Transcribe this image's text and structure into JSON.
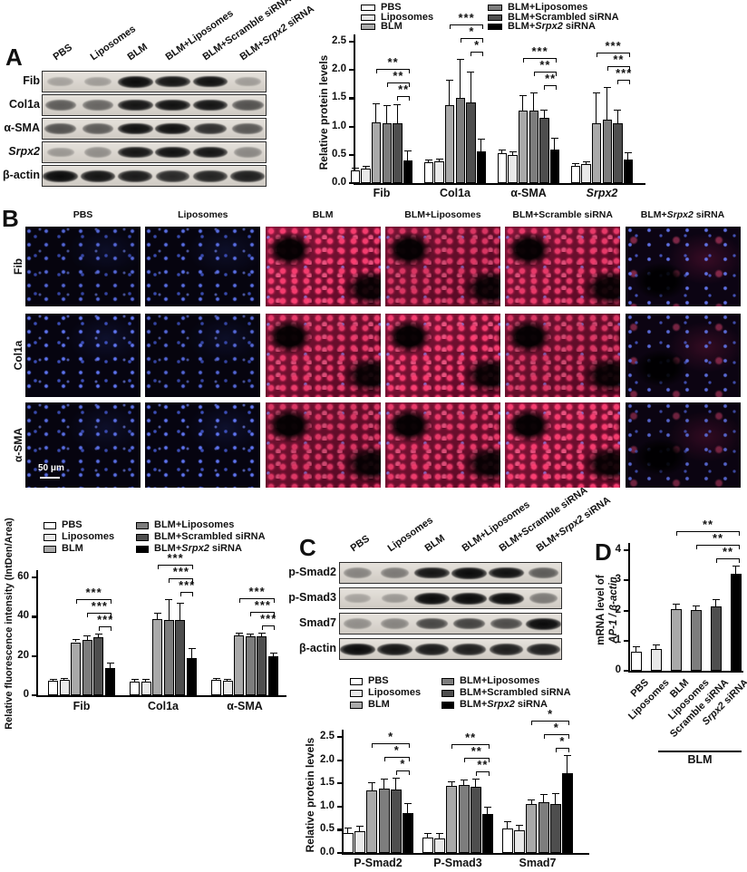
{
  "figure": {
    "panels": {
      "a": "A",
      "b": "B",
      "c": "C",
      "d": "D"
    },
    "scale_bar": "50 μm",
    "blm_bracket_label": "BLM"
  },
  "series_colors": [
    "#ffffff",
    "#e9e9e9",
    "#a9a9a9",
    "#7d7d7d",
    "#4e4e4e",
    "#000000"
  ],
  "treatment_groups": [
    "PBS",
    "Liposomes",
    "BLM",
    "BLM+Liposomes",
    "BLM+Scrambled siRNA",
    "BLM+Srpx2 siRNA"
  ],
  "panelA_blot": {
    "lane_labels": [
      "PBS",
      "Liposomes",
      "BLM",
      "BLM+Liposomes",
      "BLM+Scramble siRNA",
      "BLM+Srpx2 siRNA"
    ],
    "rows": [
      {
        "label": "Fib",
        "band_intensities": [
          0.25,
          0.28,
          1,
          0.95,
          0.97,
          0.28
        ]
      },
      {
        "label": "Col1a",
        "band_intensities": [
          0.6,
          0.55,
          0.95,
          0.97,
          0.95,
          0.65
        ]
      },
      {
        "label": "α-SMA",
        "band_intensities": [
          0.65,
          0.6,
          0.97,
          0.97,
          0.82,
          0.62
        ]
      },
      {
        "label": "Srpx2",
        "band_intensities": [
          0.3,
          0.35,
          0.95,
          0.97,
          0.95,
          0.38
        ]
      },
      {
        "label": "β-actin",
        "band_intensities": [
          1,
          0.95,
          0.92,
          0.85,
          0.88,
          0.9
        ]
      }
    ]
  },
  "panelB": {
    "column_labels": [
      "PBS",
      "Liposomes",
      "BLM",
      "BLM+Liposomes",
      "BLM+Scramble siRNA",
      "BLM+Srpx2 siRNA"
    ],
    "row_labels": [
      "Fib",
      "Col1a",
      "α-SMA"
    ],
    "column_appearance": [
      "blue-nuclei",
      "blue-nuclei",
      "red-fibrosis",
      "red-fibrosis",
      "red-fibrosis",
      "mixed-reduced"
    ]
  },
  "panelC_blot": {
    "lane_labels": [
      "PBS",
      "Liposomes",
      "BLM",
      "BLM+Liposomes",
      "BLM+Scramble siRNA",
      "BLM+Srpx2 siRNA"
    ],
    "rows": [
      {
        "label": "p-Smad2",
        "band_intensities": [
          0.4,
          0.45,
          0.95,
          1,
          0.97,
          0.6
        ]
      },
      {
        "label": "p-Smad3",
        "band_intensities": [
          0.25,
          0.3,
          1,
          1,
          1,
          0.45
        ]
      },
      {
        "label": "Smad7",
        "band_intensities": [
          0.35,
          0.4,
          0.7,
          0.72,
          0.68,
          1
        ]
      },
      {
        "label": "β-actin",
        "band_intensities": [
          1,
          0.95,
          0.92,
          0.9,
          0.9,
          0.9
        ]
      }
    ]
  },
  "chart_data": [
    {
      "id": "panelA_chart",
      "type": "bar",
      "ylabel": "Relative protein levels",
      "ylim": [
        0,
        2.5
      ],
      "yticks": [
        0,
        0.5,
        1,
        1.5,
        2,
        2.5
      ],
      "ytick_labels": [
        "0.0",
        "0.5",
        "1.0",
        "1.5",
        "2.0",
        "2.5"
      ],
      "categories": [
        "Fib",
        "Col1a",
        "α-SMA",
        "Srpx2"
      ],
      "legend": [
        "PBS",
        "Liposomes",
        "BLM",
        "BLM+Liposomes",
        "BLM+Scrambled siRNA",
        "BLM+Srpx2 siRNA"
      ],
      "legend_position": "top",
      "series": [
        {
          "name": "PBS",
          "values": [
            0.23,
            0.37,
            0.53,
            0.3
          ],
          "errors": [
            0.05,
            0.05,
            0.07,
            0.06
          ]
        },
        {
          "name": "Liposomes",
          "values": [
            0.26,
            0.38,
            0.5,
            0.34
          ],
          "errors": [
            0.05,
            0.05,
            0.06,
            0.05
          ]
        },
        {
          "name": "BLM",
          "values": [
            1.08,
            1.38,
            1.28,
            1.05
          ],
          "errors": [
            0.33,
            0.45,
            0.28,
            0.55
          ]
        },
        {
          "name": "BLM+Liposomes",
          "values": [
            1.05,
            1.5,
            1.28,
            1.12
          ],
          "errors": [
            0.33,
            0.7,
            0.33,
            0.58
          ]
        },
        {
          "name": "BLM+Scrambled siRNA",
          "values": [
            1.05,
            1.42,
            1.15,
            1.05
          ],
          "errors": [
            0.35,
            0.55,
            0.15,
            0.25
          ]
        },
        {
          "name": "BLM+Srpx2 siRNA",
          "values": [
            0.4,
            0.56,
            0.6,
            0.42
          ],
          "errors": [
            0.17,
            0.22,
            0.2,
            0.12
          ]
        }
      ],
      "significance": [
        {
          "category": "Fib",
          "brackets": [
            {
              "from": 2,
              "to": 5,
              "label": "**"
            },
            {
              "from": 3,
              "to": 5,
              "label": "**"
            },
            {
              "from": 4,
              "to": 5,
              "label": "**"
            }
          ]
        },
        {
          "category": "Col1a",
          "brackets": [
            {
              "from": 2,
              "to": 5,
              "label": "***"
            },
            {
              "from": 3,
              "to": 5,
              "label": "*"
            },
            {
              "from": 4,
              "to": 5,
              "label": "*"
            }
          ]
        },
        {
          "category": "α-SMA",
          "brackets": [
            {
              "from": 2,
              "to": 5,
              "label": "***"
            },
            {
              "from": 3,
              "to": 5,
              "label": "**"
            },
            {
              "from": 4,
              "to": 5,
              "label": "**"
            }
          ]
        },
        {
          "category": "Srpx2",
          "brackets": [
            {
              "from": 2,
              "to": 5,
              "label": "***"
            },
            {
              "from": 3,
              "to": 5,
              "label": "**"
            },
            {
              "from": 4,
              "to": 5,
              "label": "***"
            }
          ]
        }
      ]
    },
    {
      "id": "panelB_chart",
      "type": "bar",
      "ylabel": "Relative fluorescence intensity (IntDen/Area)",
      "ylim": [
        0,
        60
      ],
      "yticks": [
        0,
        20,
        40,
        60
      ],
      "ytick_labels": [
        "0",
        "20",
        "40",
        "60"
      ],
      "categories": [
        "Fib",
        "Col1a",
        "α-SMA"
      ],
      "legend": [
        "PBS",
        "Liposomes",
        "BLM",
        "BLM+Liposomes",
        "BLM+Scrambled siRNA",
        "BLM+Srpx2 siRNA"
      ],
      "legend_position": "top",
      "series": [
        {
          "name": "PBS",
          "values": [
            7.4,
            7.1,
            7.9
          ],
          "errors": [
            1.0,
            1.2,
            1.0
          ]
        },
        {
          "name": "Liposomes",
          "values": [
            7.9,
            7.0,
            7.5
          ],
          "errors": [
            0.9,
            1.2,
            1.0
          ]
        },
        {
          "name": "BLM",
          "values": [
            27.0,
            38.6,
            30.5
          ],
          "errors": [
            1.6,
            3.5,
            1.5
          ]
        },
        {
          "name": "BLM+Liposomes",
          "values": [
            28.3,
            38.5,
            29.8
          ],
          "errors": [
            2.2,
            10.5,
            1.8
          ]
        },
        {
          "name": "BLM+Scrambled siRNA",
          "values": [
            29.5,
            38.5,
            29.8
          ],
          "errors": [
            2.0,
            8.5,
            2.0
          ]
        },
        {
          "name": "BLM+Srpx2 siRNA",
          "values": [
            13.8,
            19.0,
            19.8
          ],
          "errors": [
            3.0,
            5.0,
            1.8
          ]
        }
      ],
      "significance": [
        {
          "category": "Fib",
          "brackets": [
            {
              "from": 2,
              "to": 5,
              "label": "***"
            },
            {
              "from": 3,
              "to": 5,
              "label": "***"
            },
            {
              "from": 4,
              "to": 5,
              "label": "***"
            }
          ]
        },
        {
          "category": "Col1a",
          "brackets": [
            {
              "from": 2,
              "to": 5,
              "label": "***"
            },
            {
              "from": 3,
              "to": 5,
              "label": "***"
            },
            {
              "from": 4,
              "to": 5,
              "label": "***"
            }
          ]
        },
        {
          "category": "α-SMA",
          "brackets": [
            {
              "from": 2,
              "to": 5,
              "label": "***"
            },
            {
              "from": 3,
              "to": 5,
              "label": "***"
            },
            {
              "from": 4,
              "to": 5,
              "label": "***"
            }
          ]
        }
      ]
    },
    {
      "id": "panelC_chart",
      "type": "bar",
      "ylabel": "Relative protein levels",
      "ylim": [
        0,
        2.5
      ],
      "yticks": [
        0,
        0.5,
        1,
        1.5,
        2,
        2.5
      ],
      "ytick_labels": [
        "0.0",
        "0.5",
        "1.0",
        "1.5",
        "2.0",
        "2.5"
      ],
      "categories": [
        "P-Smad2",
        "P-Smad3",
        "Smad7"
      ],
      "legend": [
        "PBS",
        "Liposomes",
        "BLM",
        "BLM+Liposomes",
        "BLM+Scrambled siRNA",
        "BLM+Srpx2 siRNA"
      ],
      "legend_position": "top",
      "series": [
        {
          "name": "PBS",
          "values": [
            0.43,
            0.34,
            0.53
          ],
          "errors": [
            0.12,
            0.08,
            0.15
          ]
        },
        {
          "name": "Liposomes",
          "values": [
            0.46,
            0.32,
            0.48
          ],
          "errors": [
            0.13,
            0.1,
            0.12
          ]
        },
        {
          "name": "BLM",
          "values": [
            1.35,
            1.45,
            1.06
          ],
          "errors": [
            0.18,
            0.1,
            0.1
          ]
        },
        {
          "name": "BLM+Liposomes",
          "values": [
            1.38,
            1.47,
            1.09
          ],
          "errors": [
            0.22,
            0.12,
            0.18
          ]
        },
        {
          "name": "BLM+Scrambled siRNA",
          "values": [
            1.37,
            1.43,
            1.06
          ],
          "errors": [
            0.25,
            0.18,
            0.22
          ]
        },
        {
          "name": "BLM+Srpx2 siRNA",
          "values": [
            0.85,
            0.84,
            1.72
          ],
          "errors": [
            0.22,
            0.15,
            0.38
          ]
        }
      ],
      "significance": [
        {
          "category": "P-Smad2",
          "brackets": [
            {
              "from": 2,
              "to": 5,
              "label": "*"
            },
            {
              "from": 3,
              "to": 5,
              "label": "*"
            },
            {
              "from": 4,
              "to": 5,
              "label": "*"
            }
          ]
        },
        {
          "category": "P-Smad3",
          "brackets": [
            {
              "from": 2,
              "to": 5,
              "label": "**"
            },
            {
              "from": 3,
              "to": 5,
              "label": "**"
            },
            {
              "from": 4,
              "to": 5,
              "label": "**"
            }
          ]
        },
        {
          "category": "Smad7",
          "brackets": [
            {
              "from": 2,
              "to": 5,
              "label": "*"
            },
            {
              "from": 3,
              "to": 5,
              "label": "*"
            },
            {
              "from": 4,
              "to": 5,
              "label": "*"
            }
          ]
        }
      ]
    },
    {
      "id": "panelD_chart",
      "type": "bar",
      "ylabel_line1": "mRNA level of",
      "ylabel_line2": "AP-1 / β-actin",
      "ylim": [
        0,
        4
      ],
      "yticks": [
        0,
        1,
        2,
        3,
        4
      ],
      "ytick_labels": [
        "0",
        "1",
        "2",
        "3",
        "4"
      ],
      "categories": [
        "PBS",
        "Liposomes",
        "BLM",
        "Liposomes",
        "Scramble siRNA",
        "Srpx2 siRNA"
      ],
      "values": [
        0.62,
        0.72,
        2.05,
        2.02,
        2.15,
        3.22
      ],
      "errors": [
        0.18,
        0.15,
        0.18,
        0.15,
        0.22,
        0.28
      ],
      "group_bracket": {
        "label": "BLM",
        "from": 2,
        "to": 5
      },
      "significance": [
        {
          "from": 2,
          "to": 5,
          "label": "**"
        },
        {
          "from": 3,
          "to": 5,
          "label": "**"
        },
        {
          "from": 4,
          "to": 5,
          "label": "**"
        }
      ]
    }
  ]
}
